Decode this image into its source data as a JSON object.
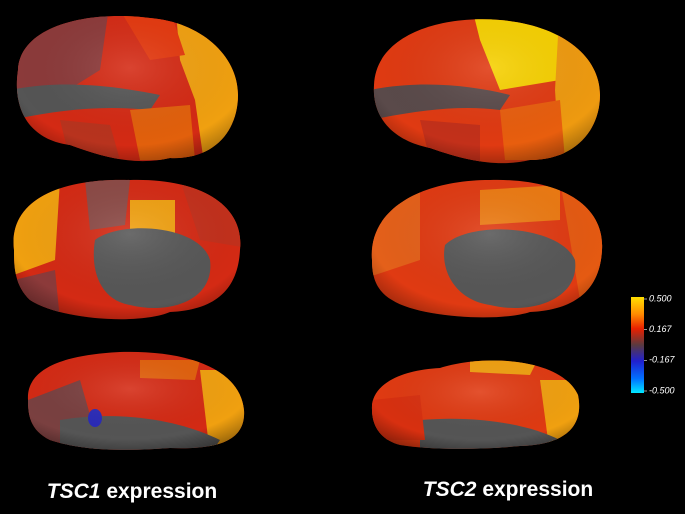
{
  "panels": [
    {
      "gene": "TSC1",
      "label": "expression"
    },
    {
      "gene": "TSC2",
      "label": "expression"
    }
  ],
  "colorbar": {
    "ticks": [
      {
        "value": 0.5,
        "label": "0.500"
      },
      {
        "value": 0.167,
        "label": "0.167"
      },
      {
        "value": -0.167,
        "label": "-0.167"
      },
      {
        "value": -0.5,
        "label": "-0.500"
      }
    ]
  }
}
